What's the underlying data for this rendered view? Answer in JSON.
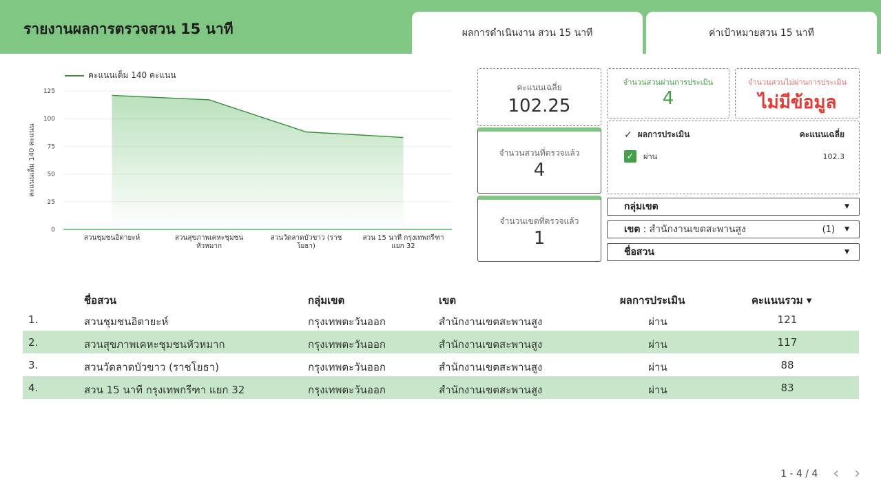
{
  "header": {
    "title": "รายงานผลการตรวจสวน 15 นาที",
    "tabs": [
      {
        "label": "ผลการดำเนินงาน สวน 15 นาที"
      },
      {
        "label": "ค่าเป้าหมายสวน 15 นาที"
      }
    ]
  },
  "chart_data": {
    "type": "area",
    "categories": [
      "สวนชุมชนอิตายะห์",
      "สวนสุขภาพเคหะชุมชน หัวหมาก",
      "สวนวัดลาดบัวขาว (ราช โยธา)",
      "สวน 15 นาที กรุงเทพกรีฑา แยก 32"
    ],
    "series": [
      {
        "name": "คะแนนเต็ม 140 คะแนน",
        "values": [
          121,
          117,
          88,
          83
        ]
      }
    ],
    "ylabel": "คะแนนเต็ม 140 คะแนน",
    "xlabel": "",
    "ylim": [
      0,
      125
    ],
    "yticks": [
      0,
      25,
      50,
      75,
      100,
      125
    ],
    "grid": true,
    "legend": "top-left",
    "color": "#388e3c"
  },
  "scorecards": {
    "avg_label": "คะแนนเฉลี่ย",
    "avg_value": "102.25",
    "pass_label": "จำนวนสวนผ่านการประเมิน",
    "pass_value": "4",
    "fail_label": "จำนวนสวนไม่ผ่านการประเมิน",
    "fail_value": "ไม่มีข้อมูล",
    "parks_label": "จำนวนสวนที่ตรวจแล้ว",
    "parks_value": "4",
    "districts_label": "จำนวนเขตที่ตรวจแล้ว",
    "districts_value": "1"
  },
  "eval_table": {
    "col1": "ผลการประเมิน",
    "col2": "คะแนนเฉลี่ย",
    "rows": [
      {
        "label": "ผ่าน",
        "value": "102.3"
      }
    ]
  },
  "filters": {
    "group": {
      "label": "กลุ่มเขต"
    },
    "district": {
      "label": "เขต",
      "selected": ": สำนักงานเขตสะพานสูง",
      "count": "(1)"
    },
    "park": {
      "label": "ชื่อสวน"
    }
  },
  "table": {
    "headers": [
      "ชื่อสวน",
      "กลุ่มเขต",
      "เขต",
      "ผลการประเมิน",
      "คะแนนรวม ▾"
    ],
    "rows": [
      {
        "idx": "1.",
        "name": "สวนชุมชนอิตายะห์",
        "group": "กรุงเทพตะวันออก",
        "district": "สำนักงานเขตสะพานสูง",
        "eval": "ผ่าน",
        "score": "121"
      },
      {
        "idx": "2.",
        "name": "สวนสุขภาพเคหะชุมชนหัวหมาก",
        "group": "กรุงเทพตะวันออก",
        "district": "สำนักงานเขตสะพานสูง",
        "eval": "ผ่าน",
        "score": "117"
      },
      {
        "idx": "3.",
        "name": "สวนวัดลาดบัวขาว (ราชโยธา)",
        "group": "กรุงเทพตะวันออก",
        "district": "สำนักงานเขตสะพานสูง",
        "eval": "ผ่าน",
        "score": "88"
      },
      {
        "idx": "4.",
        "name": "สวน 15 นาที กรุงเทพกรีฑา แยก 32",
        "group": "กรุงเทพตะวันออก",
        "district": "สำนักงานเขตสะพานสูง",
        "eval": "ผ่าน",
        "score": "83"
      }
    ]
  },
  "pager": {
    "text": "1 - 4 / 4",
    "prev": "‹",
    "next": "›"
  }
}
